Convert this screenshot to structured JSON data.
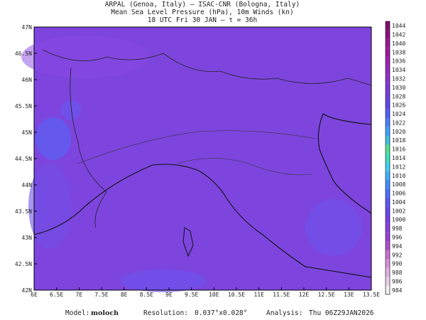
{
  "header": {
    "line1": "ARPAL (Genoa, Italy)  –  ISAC-CNR (Bologna, Italy)",
    "line2": "Mean Sea Level Pressure (hPa), 10m Winds (kn)",
    "line3": "18 UTC Fri 30 JAN  –  τ = 36h"
  },
  "map": {
    "lat_labels": [
      "47N",
      "46.5N",
      "46N",
      "45.5N",
      "45N",
      "44.5N",
      "44N",
      "43.5N",
      "43N",
      "42.5N",
      "42N"
    ],
    "lon_labels": [
      "6E",
      "6.5E",
      "7E",
      "7.5E",
      "8E",
      "8.5E",
      "9E",
      "9.5E",
      "10E",
      "10.5E",
      "11E",
      "11.5E",
      "12E",
      "12.5E",
      "13E",
      "13.5E"
    ]
  },
  "colorbar": {
    "labels": [
      984,
      986,
      988,
      990,
      992,
      994,
      996,
      998,
      1000,
      1002,
      1004,
      1006,
      1008,
      1010,
      1012,
      1014,
      1016,
      1018,
      1020,
      1022,
      1024,
      1026,
      1028,
      1030,
      1032,
      1034,
      1036,
      1038,
      1040,
      1042,
      1044
    ],
    "colors": [
      "#f0f0f0",
      "#e8d0e8",
      "#e0b0e0",
      "#d890d8",
      "#c870d0",
      "#b050d0",
      "#9a40d8",
      "#8a40e0",
      "#7a40e8",
      "#6a48f0",
      "#5a58f8",
      "#4a70ff",
      "#4090ff",
      "#40b0ff",
      "#40d0f0",
      "#40e0c0",
      "#50e090",
      "#40c0e0",
      "#40a0ff",
      "#4880ff",
      "#5060f8",
      "#6048f0",
      "#7040e0",
      "#8038d8",
      "#9030d0",
      "#9828c0",
      "#a020b0",
      "#a018a0",
      "#981890",
      "#901080",
      "#801070"
    ]
  },
  "footer": {
    "model_label": "Model:",
    "model": "moloch",
    "resolution_label": "Resolution:",
    "resolution": "0.037°x0.028°",
    "analysis_label": "Analysis:",
    "analysis": "Thu 06Z29JAN2026"
  }
}
